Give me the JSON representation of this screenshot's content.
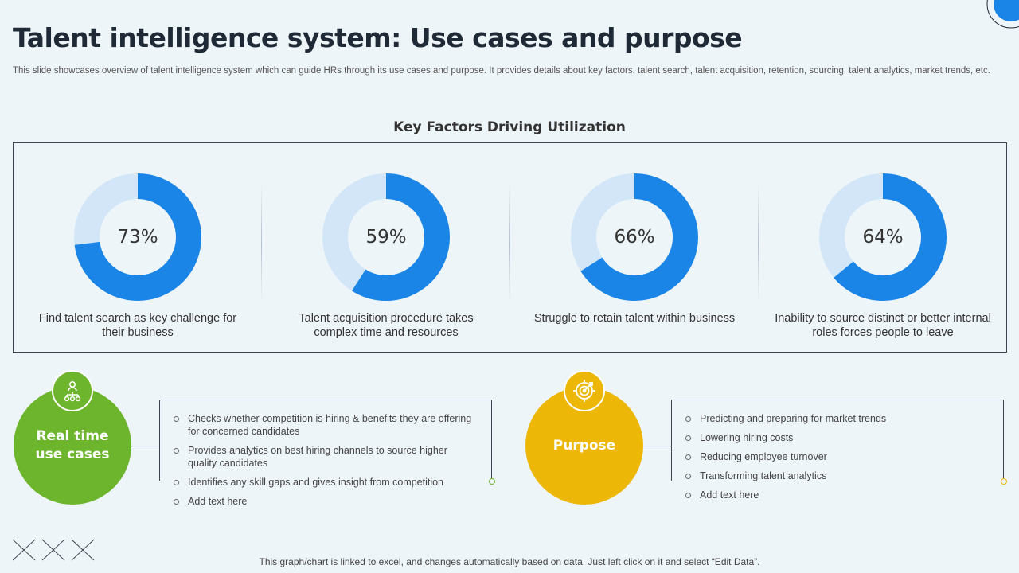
{
  "header": {
    "title": "Talent intelligence system: Use cases and purpose",
    "subtitle": "This slide showcases overview of talent intelligence system which can guide HRs through its use cases and purpose. It provides details about key factors, talent search, talent acquisition, retention, sourcing, talent analytics, market trends, etc."
  },
  "section": {
    "heading": "Key Factors Driving Utilization"
  },
  "chart_data": {
    "type": "pie",
    "variant": "donut",
    "title": "Key Factors Driving Utilization",
    "series": [
      {
        "label": "73%",
        "value": 73,
        "caption": "Find talent search as key challenge for their business"
      },
      {
        "label": "59%",
        "value": 59,
        "caption": "Talent acquisition procedure takes complex time and resources"
      },
      {
        "label": "66%",
        "value": 66,
        "caption": "Struggle to retain talent within business"
      },
      {
        "label": "64%",
        "value": 64,
        "caption": "Inability to source distinct or better internal roles forces people to leave"
      }
    ],
    "colors": {
      "filled": "#1a85e6",
      "remainder": "#d2e6f8"
    }
  },
  "use_cases": {
    "title_line1": "Real time",
    "title_line2": "use cases",
    "color": "#6db52c",
    "icon": "network-people-icon",
    "points": [
      "Checks whether competition is hiring & benefits they are offering for concerned candidates",
      "Provides analytics on best hiring channels to source higher quality candidates",
      "Identifies any skill gaps and gives insight from competition",
      "Add text here"
    ]
  },
  "purpose": {
    "title": "Purpose",
    "color": "#ecb707",
    "icon": "target-icon",
    "points": [
      "Predicting and preparing for market trends",
      "Lowering hiring costs",
      "Reducing employee turnover",
      "Transforming talent analytics",
      "Add text here"
    ]
  },
  "footnote": "This graph/chart is linked to excel, and changes automatically based on data. Just left click on it and select “Edit Data”."
}
